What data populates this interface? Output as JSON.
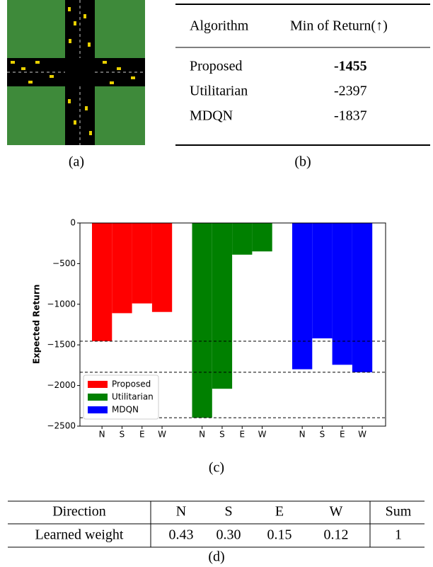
{
  "panel_a": {
    "caption": "(a)"
  },
  "panel_b": {
    "caption": "(b)",
    "table": {
      "header": [
        "Algorithm",
        "Min of Return(↑)"
      ],
      "rows": [
        [
          "Proposed",
          "-1455"
        ],
        [
          "Utilitarian",
          "-2397"
        ],
        [
          "MDQN",
          "-1837"
        ]
      ]
    }
  },
  "chart_data": {
    "type": "bar",
    "caption": "(c)",
    "ylabel": "Expected Return",
    "categories": [
      "N",
      "S",
      "E",
      "W"
    ],
    "series": [
      {
        "name": "Proposed",
        "color": "#ff0000",
        "values": [
          -1455,
          -1110,
          -990,
          -1095
        ]
      },
      {
        "name": "Utilitarian",
        "color": "#008000",
        "values": [
          -2397,
          -2040,
          -390,
          -350
        ]
      },
      {
        "name": "MDQN",
        "color": "#0000ff",
        "values": [
          -1800,
          -1420,
          -1745,
          -1837
        ]
      }
    ],
    "ylim": [
      -2500,
      0
    ],
    "yticks": [
      0,
      {
        "value": -500,
        "label": "−500"
      },
      {
        "value": -1000,
        "label": "−1000"
      },
      {
        "value": -1500,
        "label": "−1500"
      },
      {
        "value": -2000,
        "label": "−2000"
      },
      {
        "value": -2500,
        "label": "−2500"
      }
    ],
    "hlines": [
      -1455,
      -1837,
      -2397
    ],
    "legend": "lower left",
    "grid": false
  },
  "panel_d": {
    "caption": "(d)",
    "table": {
      "header": [
        "Direction",
        "N",
        "S",
        "E",
        "W",
        "Sum"
      ],
      "rows": [
        [
          "Learned weight",
          "0.43",
          "0.30",
          "0.15",
          "0.12",
          "1"
        ]
      ]
    }
  }
}
